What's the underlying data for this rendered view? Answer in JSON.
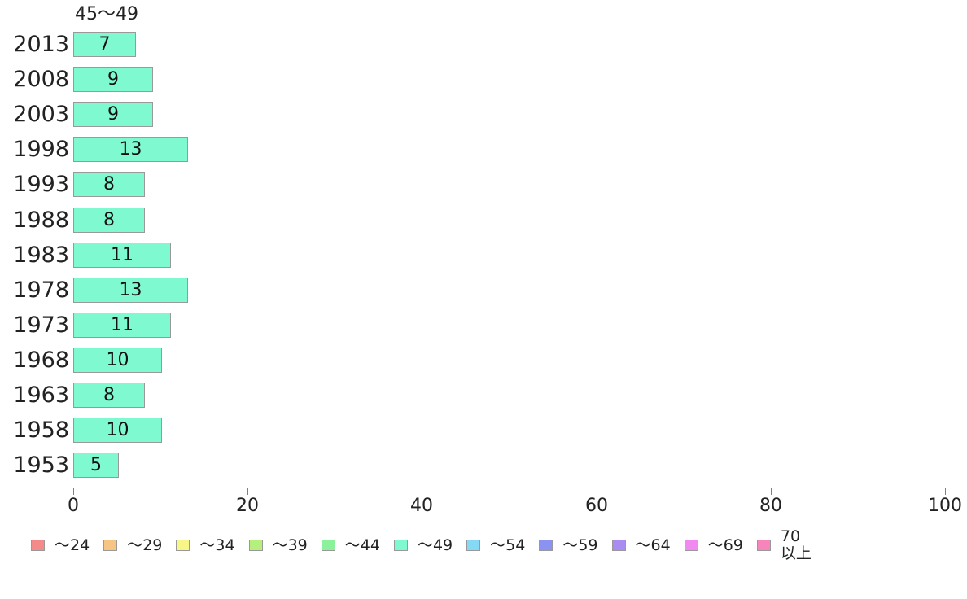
{
  "page": {
    "background_color": "#ffffff",
    "text_color": "#222222"
  },
  "chart_data": {
    "type": "bar",
    "orientation": "horizontal",
    "title": "45〜49",
    "categories": [
      "2013",
      "2008",
      "2003",
      "1998",
      "1993",
      "1988",
      "1983",
      "1978",
      "1973",
      "1968",
      "1963",
      "1958",
      "1953"
    ],
    "values": [
      7,
      9,
      9,
      13,
      8,
      8,
      11,
      13,
      11,
      10,
      8,
      10,
      5
    ],
    "value_labels_shown_inside_bars": true,
    "xlabel": "",
    "ylabel": "",
    "xlim": [
      0,
      100
    ],
    "x_ticks": [
      0,
      20,
      40,
      60,
      80,
      100
    ],
    "grid": "off",
    "bar_color": "#7ffad0",
    "bar_border_color": "#999999",
    "axis_color": "#808080",
    "legend_position": "bottom",
    "legend": [
      {
        "label": "〜24",
        "lines": [
          "〜24"
        ],
        "color": "#f48a8a"
      },
      {
        "label": "〜29",
        "lines": [
          "〜29"
        ],
        "color": "#f6c583"
      },
      {
        "label": "〜34",
        "lines": [
          "〜34"
        ],
        "color": "#f8f687"
      },
      {
        "label": "〜39",
        "lines": [
          "〜39"
        ],
        "color": "#b5ef7c"
      },
      {
        "label": "〜44",
        "lines": [
          "〜44"
        ],
        "color": "#8bf29b"
      },
      {
        "label": "〜49",
        "lines": [
          "〜49"
        ],
        "color": "#7ffad0"
      },
      {
        "label": "〜54",
        "lines": [
          "〜54"
        ],
        "color": "#86d9f5"
      },
      {
        "label": "〜59",
        "lines": [
          "〜59"
        ],
        "color": "#8a92f2"
      },
      {
        "label": "〜64",
        "lines": [
          "〜64"
        ],
        "color": "#a98bf2"
      },
      {
        "label": "〜69",
        "lines": [
          "〜69"
        ],
        "color": "#f08af0"
      },
      {
        "label": "70以上",
        "lines": [
          "70",
          "以上"
        ],
        "color": "#f585bb"
      }
    ]
  }
}
